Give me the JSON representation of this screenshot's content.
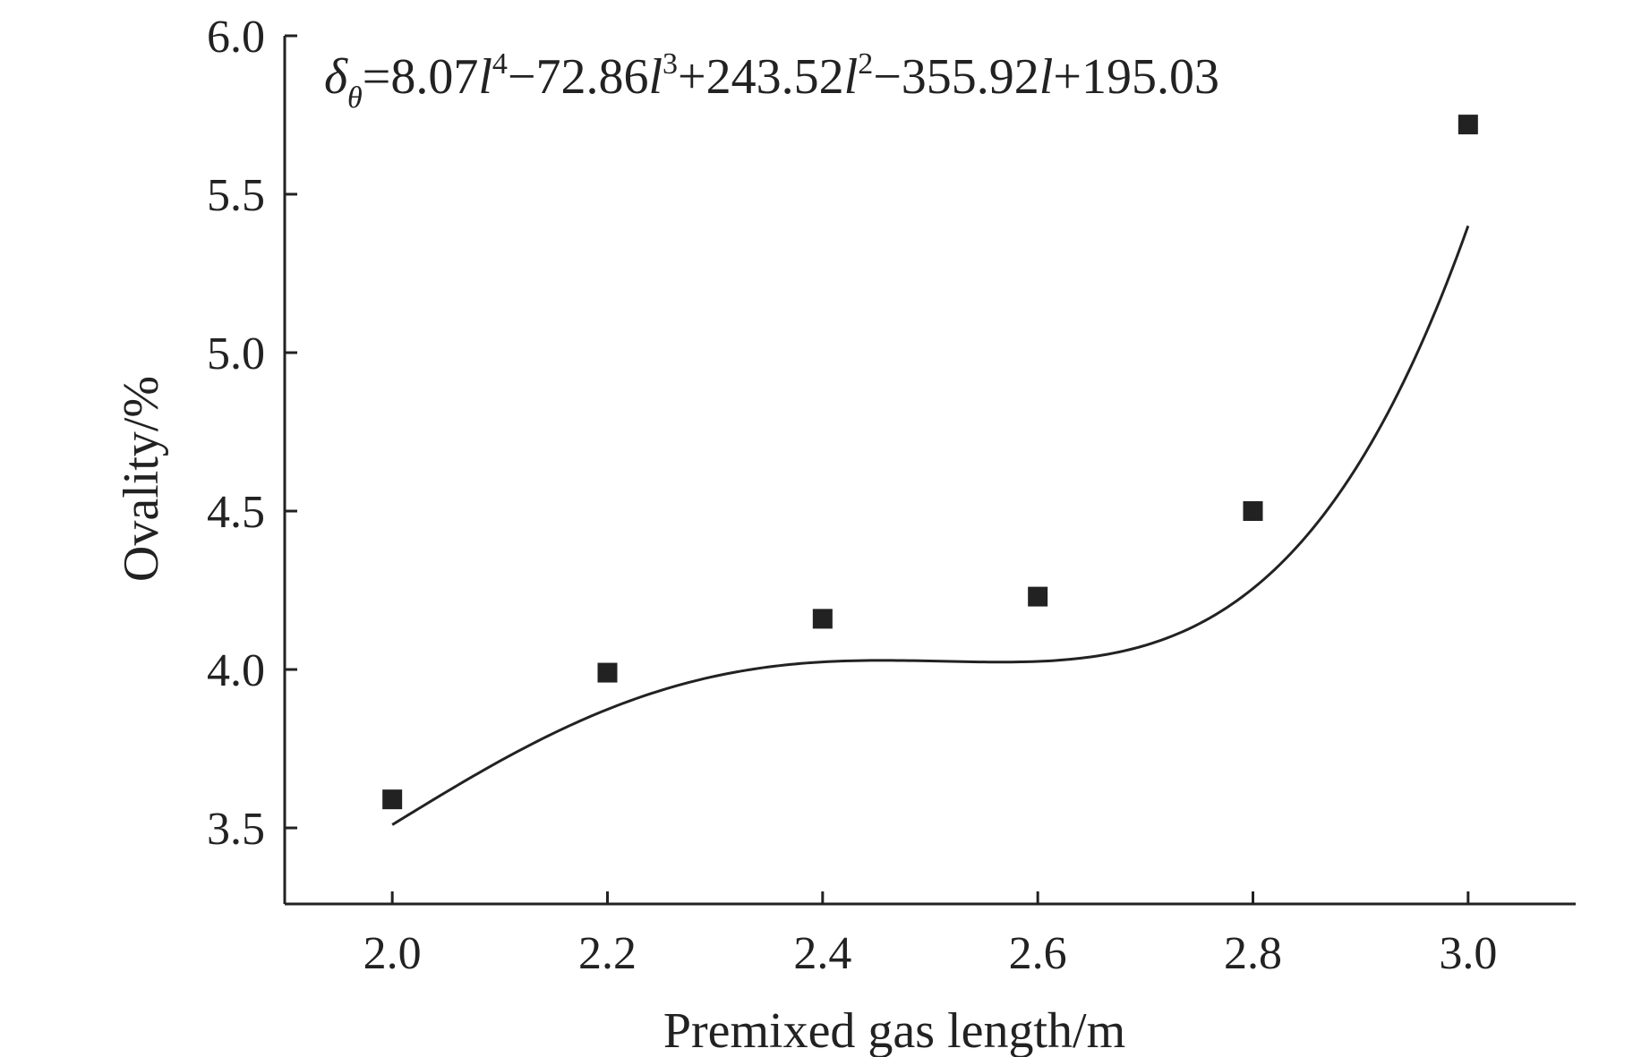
{
  "chart_data": {
    "type": "scatter",
    "xlabel": "Premixed gas length/m",
    "ylabel": "Ovality/%",
    "xlim": [
      1.9,
      3.1
    ],
    "ylim": [
      3.26,
      6.0
    ],
    "x_ticks": [
      "2.0",
      "2.2",
      "2.4",
      "2.6",
      "2.8",
      "3.0"
    ],
    "y_ticks": [
      "3.5",
      "4.0",
      "4.5",
      "5.0",
      "5.5",
      "6.0"
    ],
    "grid": false,
    "legend": "none",
    "series": [
      {
        "marker": "square",
        "color": "#222222",
        "points": [
          {
            "x": 2.0,
            "y": 3.59
          },
          {
            "x": 2.2,
            "y": 3.99
          },
          {
            "x": 2.4,
            "y": 4.16
          },
          {
            "x": 2.6,
            "y": 4.23
          },
          {
            "x": 2.8,
            "y": 4.5
          },
          {
            "x": 3.0,
            "y": 5.72
          }
        ]
      }
    ],
    "fit": {
      "type": "polynomial",
      "coefficients": [
        8.07,
        -72.86,
        243.52,
        -355.92,
        195.03
      ],
      "x_range": [
        2.0,
        3.0
      ],
      "equation": {
        "lhs": "δ",
        "lhs_sub": "θ",
        "terms": [
          {
            "coef": "=8.07",
            "var": "l",
            "exp": "4"
          },
          {
            "coef": "−72.86",
            "var": "l",
            "exp": "3"
          },
          {
            "coef": "+243.52",
            "var": "l",
            "exp": "2"
          },
          {
            "coef": "−355.92",
            "var": "l",
            "exp": ""
          },
          {
            "coef": "+195.03",
            "var": "",
            "exp": ""
          }
        ]
      }
    }
  }
}
